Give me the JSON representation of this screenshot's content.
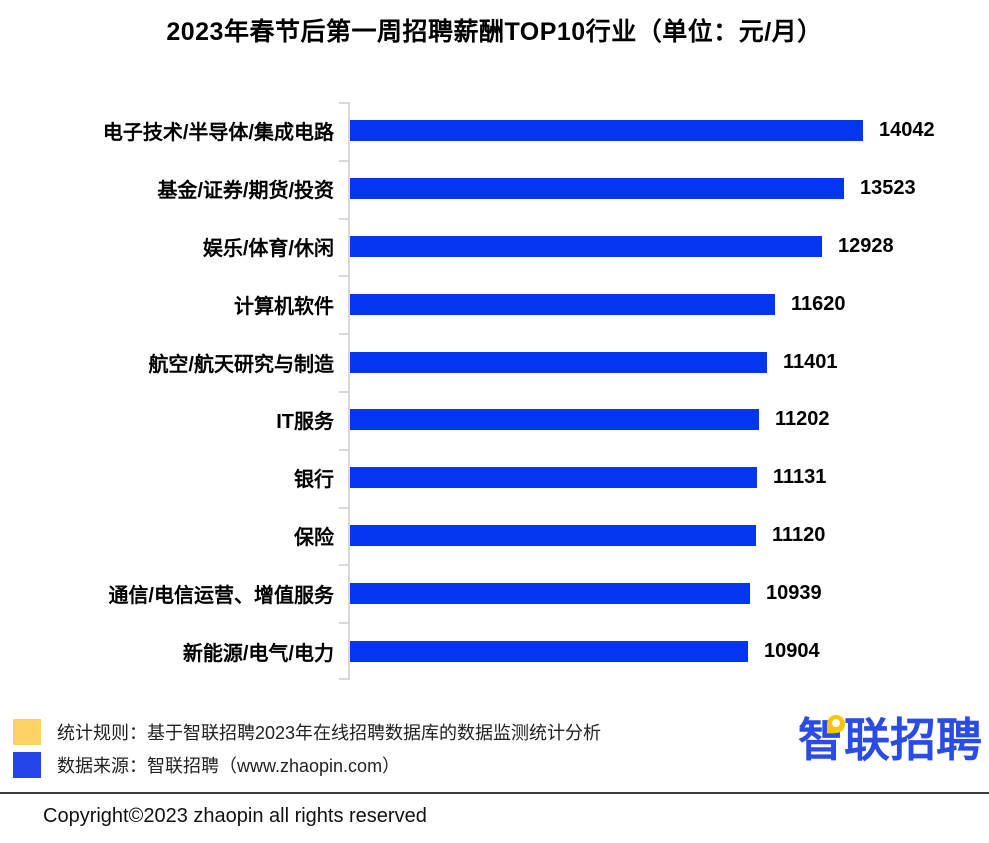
{
  "title": "2023年春节后第一周招聘薪酬TOP10行业（单位：元/月）",
  "chart_data": {
    "type": "bar",
    "orientation": "horizontal",
    "title": "2023年春节后第一周招聘薪酬TOP10行业（单位：元/月）",
    "unit": "元/月",
    "categories": [
      "电子技术/半导体/集成电路",
      "基金/证券/期货/投资",
      "娱乐/体育/休闲",
      "计算机软件",
      "航空/航天研究与制造",
      "IT服务",
      "银行",
      "保险",
      "通信/电信运营、增值服务",
      "新能源/电气/电力"
    ],
    "values": [
      14042,
      13523,
      12928,
      11620,
      11401,
      11202,
      11131,
      11120,
      10939,
      10904
    ],
    "xlim": [
      0,
      14042
    ],
    "bar_color": "#0435f0",
    "axis_color": "#d9d9d9",
    "value_labels_shown": true,
    "grid": false,
    "legend_position": "bottom-left"
  },
  "legend": {
    "items": [
      {
        "label": "统计规则：基于智联招聘2023年在线招聘数据库的数据监测统计分析",
        "color": "#fbd263"
      },
      {
        "label": "数据来源：智联招聘（www.zhaopin.com）",
        "color": "#2445e9"
      }
    ]
  },
  "logo": {
    "text": "智联招聘",
    "color": "#2a4be4",
    "pin_color": "#f7c600"
  },
  "footer": {
    "copyright": "Copyright©2023 zhaopin all rights reserved"
  }
}
